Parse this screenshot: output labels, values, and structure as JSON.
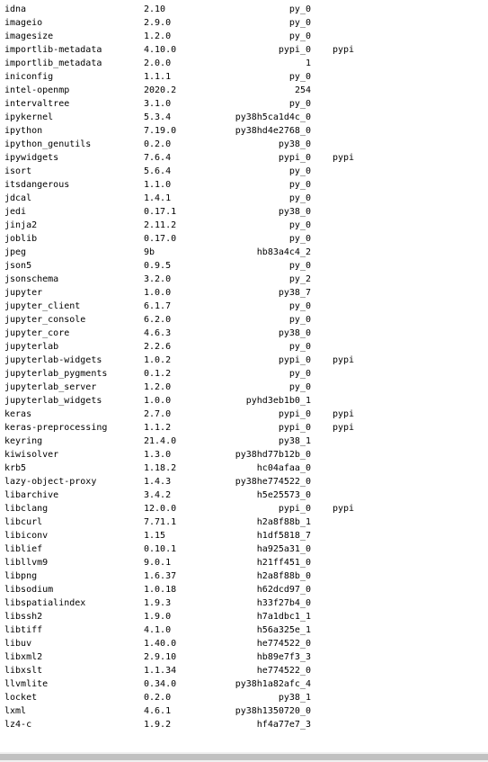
{
  "packages": [
    {
      "name": "idna",
      "version": "2.10",
      "build": "py_0",
      "channel": ""
    },
    {
      "name": "imageio",
      "version": "2.9.0",
      "build": "py_0",
      "channel": ""
    },
    {
      "name": "imagesize",
      "version": "1.2.0",
      "build": "py_0",
      "channel": ""
    },
    {
      "name": "importlib-metadata",
      "version": "4.10.0",
      "build": "pypi_0",
      "channel": "pypi"
    },
    {
      "name": "importlib_metadata",
      "version": "2.0.0",
      "build": "1",
      "channel": ""
    },
    {
      "name": "iniconfig",
      "version": "1.1.1",
      "build": "py_0",
      "channel": ""
    },
    {
      "name": "intel-openmp",
      "version": "2020.2",
      "build": "254",
      "channel": ""
    },
    {
      "name": "intervaltree",
      "version": "3.1.0",
      "build": "py_0",
      "channel": ""
    },
    {
      "name": "ipykernel",
      "version": "5.3.4",
      "build": "py38h5ca1d4c_0",
      "channel": ""
    },
    {
      "name": "ipython",
      "version": "7.19.0",
      "build": "py38hd4e2768_0",
      "channel": ""
    },
    {
      "name": "ipython_genutils",
      "version": "0.2.0",
      "build": "py38_0",
      "channel": ""
    },
    {
      "name": "ipywidgets",
      "version": "7.6.4",
      "build": "pypi_0",
      "channel": "pypi"
    },
    {
      "name": "isort",
      "version": "5.6.4",
      "build": "py_0",
      "channel": ""
    },
    {
      "name": "itsdangerous",
      "version": "1.1.0",
      "build": "py_0",
      "channel": ""
    },
    {
      "name": "jdcal",
      "version": "1.4.1",
      "build": "py_0",
      "channel": ""
    },
    {
      "name": "jedi",
      "version": "0.17.1",
      "build": "py38_0",
      "channel": ""
    },
    {
      "name": "jinja2",
      "version": "2.11.2",
      "build": "py_0",
      "channel": ""
    },
    {
      "name": "joblib",
      "version": "0.17.0",
      "build": "py_0",
      "channel": ""
    },
    {
      "name": "jpeg",
      "version": "9b",
      "build": "hb83a4c4_2",
      "channel": ""
    },
    {
      "name": "json5",
      "version": "0.9.5",
      "build": "py_0",
      "channel": ""
    },
    {
      "name": "jsonschema",
      "version": "3.2.0",
      "build": "py_2",
      "channel": ""
    },
    {
      "name": "jupyter",
      "version": "1.0.0",
      "build": "py38_7",
      "channel": ""
    },
    {
      "name": "jupyter_client",
      "version": "6.1.7",
      "build": "py_0",
      "channel": ""
    },
    {
      "name": "jupyter_console",
      "version": "6.2.0",
      "build": "py_0",
      "channel": ""
    },
    {
      "name": "jupyter_core",
      "version": "4.6.3",
      "build": "py38_0",
      "channel": ""
    },
    {
      "name": "jupyterlab",
      "version": "2.2.6",
      "build": "py_0",
      "channel": ""
    },
    {
      "name": "jupyterlab-widgets",
      "version": "1.0.2",
      "build": "pypi_0",
      "channel": "pypi"
    },
    {
      "name": "jupyterlab_pygments",
      "version": "0.1.2",
      "build": "py_0",
      "channel": ""
    },
    {
      "name": "jupyterlab_server",
      "version": "1.2.0",
      "build": "py_0",
      "channel": ""
    },
    {
      "name": "jupyterlab_widgets",
      "version": "1.0.0",
      "build": "pyhd3eb1b0_1",
      "channel": ""
    },
    {
      "name": "keras",
      "version": "2.7.0",
      "build": "pypi_0",
      "channel": "pypi"
    },
    {
      "name": "keras-preprocessing",
      "version": "1.1.2",
      "build": "pypi_0",
      "channel": "pypi"
    },
    {
      "name": "keyring",
      "version": "21.4.0",
      "build": "py38_1",
      "channel": ""
    },
    {
      "name": "kiwisolver",
      "version": "1.3.0",
      "build": "py38hd77b12b_0",
      "channel": ""
    },
    {
      "name": "krb5",
      "version": "1.18.2",
      "build": "hc04afaa_0",
      "channel": ""
    },
    {
      "name": "lazy-object-proxy",
      "version": "1.4.3",
      "build": "py38he774522_0",
      "channel": ""
    },
    {
      "name": "libarchive",
      "version": "3.4.2",
      "build": "h5e25573_0",
      "channel": ""
    },
    {
      "name": "libclang",
      "version": "12.0.0",
      "build": "pypi_0",
      "channel": "pypi"
    },
    {
      "name": "libcurl",
      "version": "7.71.1",
      "build": "h2a8f88b_1",
      "channel": ""
    },
    {
      "name": "libiconv",
      "version": "1.15",
      "build": "h1df5818_7",
      "channel": ""
    },
    {
      "name": "liblief",
      "version": "0.10.1",
      "build": "ha925a31_0",
      "channel": ""
    },
    {
      "name": "libllvm9",
      "version": "9.0.1",
      "build": "h21ff451_0",
      "channel": ""
    },
    {
      "name": "libpng",
      "version": "1.6.37",
      "build": "h2a8f88b_0",
      "channel": ""
    },
    {
      "name": "libsodium",
      "version": "1.0.18",
      "build": "h62dcd97_0",
      "channel": ""
    },
    {
      "name": "libspatialindex",
      "version": "1.9.3",
      "build": "h33f27b4_0",
      "channel": ""
    },
    {
      "name": "libssh2",
      "version": "1.9.0",
      "build": "h7a1dbc1_1",
      "channel": ""
    },
    {
      "name": "libtiff",
      "version": "4.1.0",
      "build": "h56a325e_1",
      "channel": ""
    },
    {
      "name": "libuv",
      "version": "1.40.0",
      "build": "he774522_0",
      "channel": ""
    },
    {
      "name": "libxml2",
      "version": "2.9.10",
      "build": "hb89e7f3_3",
      "channel": ""
    },
    {
      "name": "libxslt",
      "version": "1.1.34",
      "build": "he774522_0",
      "channel": ""
    },
    {
      "name": "llvmlite",
      "version": "0.34.0",
      "build": "py38h1a82afc_4",
      "channel": ""
    },
    {
      "name": "locket",
      "version": "0.2.0",
      "build": "py38_1",
      "channel": ""
    },
    {
      "name": "lxml",
      "version": "4.6.1",
      "build": "py38h1350720_0",
      "channel": ""
    },
    {
      "name": "lz4-c",
      "version": "1.9.2",
      "build": "hf4a77e7_3",
      "channel": ""
    }
  ]
}
